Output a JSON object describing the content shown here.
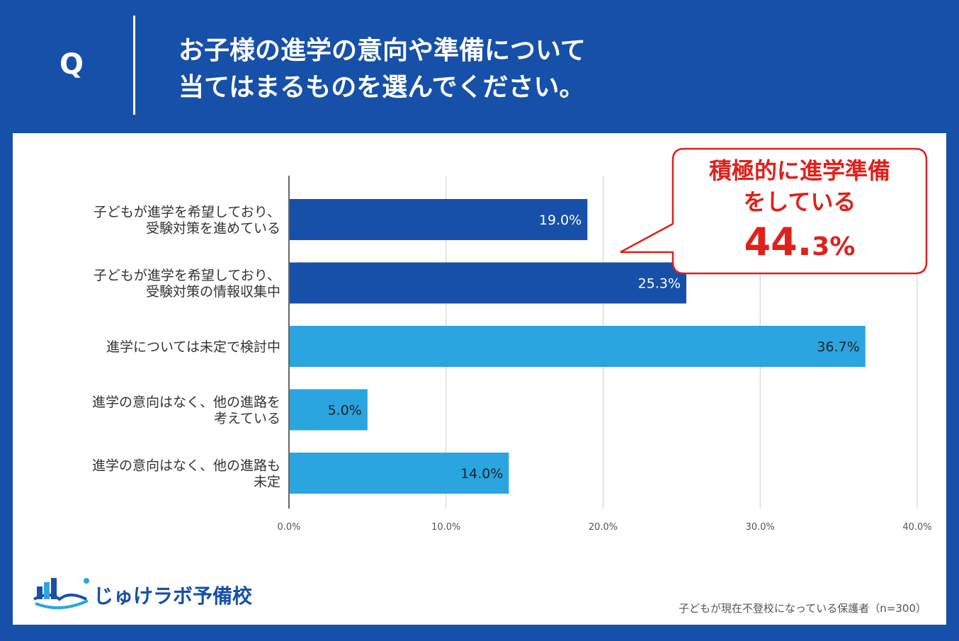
{
  "header": {
    "q_mark": "Q",
    "title_line1": "お子様の進学の意向や準備について",
    "title_line2": "当てはまるものを選んでください。"
  },
  "colors": {
    "background": "#1650a8",
    "bar_dark": "#1650a8",
    "bar_light": "#2aa5e0",
    "callout_red": "#e0201a"
  },
  "chart_data": {
    "type": "bar",
    "orientation": "horizontal",
    "title": "お子様の進学の意向や準備について当てはまるものを選んでください。",
    "categories": [
      [
        "子どもが進学を希望しており、",
        "受験対策を進めている"
      ],
      [
        "子どもが進学を希望しており、",
        "受験対策の情報収集中"
      ],
      [
        "進学については未定で検討中"
      ],
      [
        "進学の意向はなく、他の進路を",
        "考えている"
      ],
      [
        "進学の意向はなく、他の進路も",
        "未定"
      ]
    ],
    "values": [
      19.0,
      25.3,
      36.7,
      5.0,
      14.0
    ],
    "value_labels": [
      "19.0%",
      "25.3%",
      "36.7%",
      "5.0%",
      "14.0%"
    ],
    "bar_color_group": [
      "dark",
      "dark",
      "light",
      "light",
      "light"
    ],
    "xlim": [
      0,
      40
    ],
    "xticks": [
      0,
      10,
      20,
      30,
      40
    ],
    "xtick_labels": [
      "0.0%",
      "10.0%",
      "20.0%",
      "30.0%",
      "40.0%"
    ],
    "grid": true,
    "annotation": {
      "line1": "積極的に進学準備",
      "line2": "をしている",
      "value_main": "44.",
      "value_sub": "3%",
      "points_to": "first two bars"
    }
  },
  "footer": {
    "logo_text": "じゅけラボ予備校",
    "note": "子どもが現在不登校になっている保護者（n=300）"
  }
}
